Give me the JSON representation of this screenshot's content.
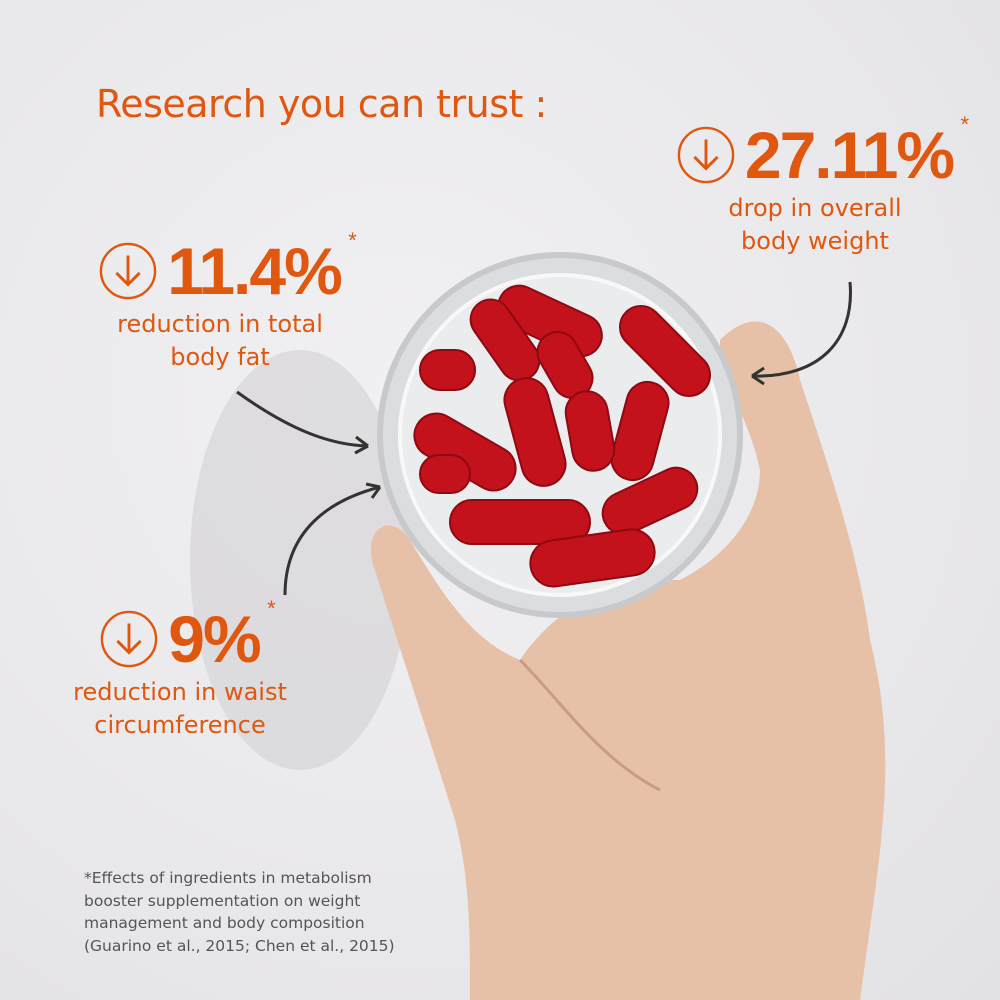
{
  "title": "Research you can trust :",
  "accent_color": "#e0570f",
  "stats": [
    {
      "value": "27.11%",
      "marker": "*",
      "icon": "arrow-down-circle-icon",
      "desc_line1": "drop in overall",
      "desc_line2": "body weight"
    },
    {
      "value": "11.4%",
      "marker": "*",
      "icon": "arrow-down-circle-icon",
      "desc_line1": "reduction in total",
      "desc_line2": "body fat"
    },
    {
      "value": "9%",
      "marker": "*",
      "icon": "arrow-down-circle-icon",
      "desc_line1": "reduction in waist",
      "desc_line2": "circumference"
    }
  ],
  "footnote": {
    "line1": "*Effects of ingredients in metabolism",
    "line2": "booster supplementation on weight",
    "line3": "management and body composition",
    "line4": "(Guarino et al., 2015; Chen et al., 2015)"
  }
}
